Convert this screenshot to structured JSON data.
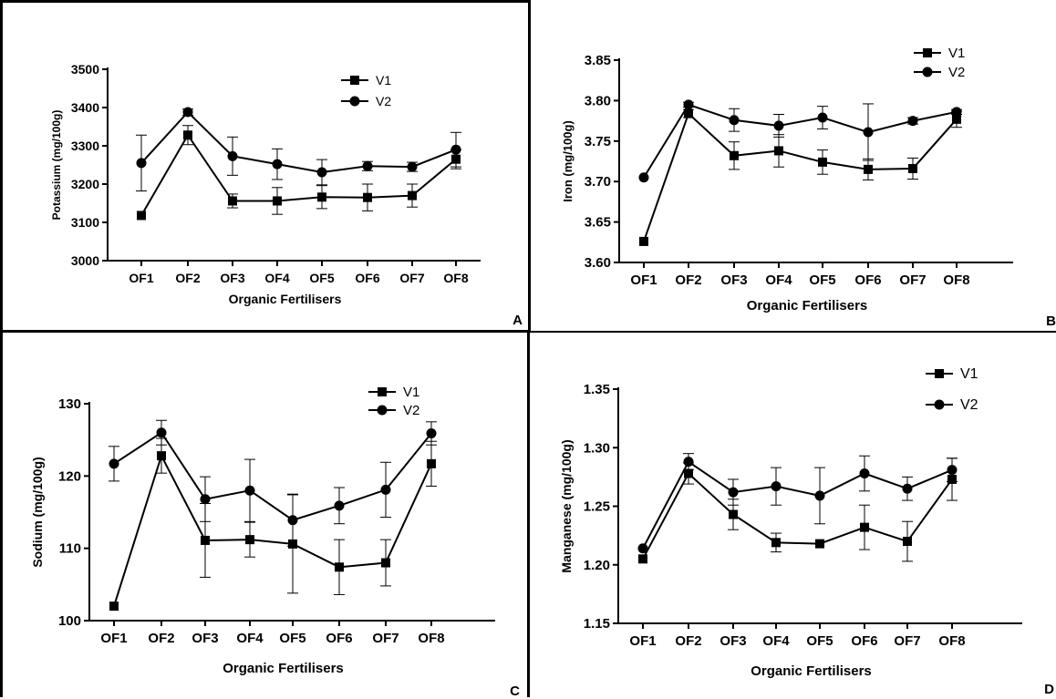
{
  "chart_data": [
    {
      "panel": "A",
      "type": "line",
      "xlabel": "Organic Fertilisers",
      "ylabel": "Potassium (mg/100g)",
      "categories": [
        "OF1",
        "OF2",
        "OF3",
        "OF4",
        "OF5",
        "OF6",
        "OF7",
        "OF8"
      ],
      "ylim": [
        3000,
        3500
      ],
      "yticks": [
        3000,
        3100,
        3200,
        3300,
        3400,
        3500
      ],
      "series": [
        {
          "name": "V1",
          "marker": "square",
          "values": [
            3118,
            3328,
            3156,
            3156,
            3166,
            3165,
            3170,
            3265
          ],
          "errors": [
            0,
            25,
            18,
            35,
            30,
            35,
            30,
            25
          ]
        },
        {
          "name": "V2",
          "marker": "circle",
          "values": [
            3255,
            3388,
            3273,
            3252,
            3231,
            3247,
            3245,
            3290
          ],
          "errors": [
            73,
            8,
            50,
            40,
            33,
            12,
            12,
            45
          ]
        }
      ],
      "legend": "top-right"
    },
    {
      "panel": "B",
      "type": "line",
      "xlabel": "Organic Fertilisers",
      "ylabel": "Iron (mg/100g)",
      "categories": [
        "OF1",
        "OF2",
        "OF3",
        "OF4",
        "OF5",
        "OF6",
        "OF7",
        "OF8"
      ],
      "ylim": [
        3.6,
        3.85
      ],
      "yticks": [
        "3.60",
        "3.65",
        "3.70",
        "3.75",
        "3.80",
        "3.85"
      ],
      "series": [
        {
          "name": "V1",
          "marker": "square",
          "values": [
            3.626,
            3.784,
            3.732,
            3.738,
            3.724,
            3.715,
            3.716,
            3.777
          ],
          "errors": [
            0,
            0.005,
            0.017,
            0.02,
            0.015,
            0.013,
            0.013,
            0.01
          ]
        },
        {
          "name": "V2",
          "marker": "circle",
          "values": [
            3.705,
            3.795,
            3.776,
            3.769,
            3.779,
            3.761,
            3.775,
            3.786
          ],
          "errors": [
            0,
            0.003,
            0.014,
            0.014,
            0.014,
            0.035,
            0.004,
            0.003
          ]
        }
      ],
      "legend": "top-right"
    },
    {
      "panel": "C",
      "type": "line",
      "xlabel": "Organic Fertilisers",
      "ylabel": "Sodium (mg/100g)",
      "categories": [
        "OF1",
        "OF2",
        "OF3",
        "OF4",
        "OF5",
        "OF6",
        "OF7",
        "OF8"
      ],
      "ylim": [
        100,
        130
      ],
      "yticks": [
        100,
        110,
        120,
        130
      ],
      "series": [
        {
          "name": "V1",
          "marker": "square",
          "values": [
            102.0,
            122.8,
            111.1,
            111.2,
            110.6,
            107.4,
            108.0,
            121.7
          ],
          "errors": [
            0,
            2.4,
            5.1,
            2.4,
            6.8,
            3.8,
            3.2,
            3.1
          ]
        },
        {
          "name": "V2",
          "marker": "circle",
          "values": [
            121.7,
            126.0,
            116.8,
            118.0,
            113.9,
            115.9,
            118.1,
            125.9
          ],
          "errors": [
            2.4,
            1.7,
            3.1,
            4.3,
            3.6,
            2.5,
            3.8,
            1.6
          ]
        }
      ],
      "legend": "top-right"
    },
    {
      "panel": "D",
      "type": "line",
      "xlabel": "Organic Fertilisers",
      "ylabel": "Manganese (mg/100g)",
      "categories": [
        "OF1",
        "OF2",
        "OF3",
        "OF4",
        "OF5",
        "OF6",
        "OF7",
        "OF8"
      ],
      "ylim": [
        1.15,
        1.35
      ],
      "yticks": [
        "1.15",
        "1.20",
        "1.25",
        "1.30",
        "1.35"
      ],
      "series": [
        {
          "name": "V1",
          "marker": "square",
          "values": [
            1.205,
            1.278,
            1.243,
            1.219,
            1.218,
            1.232,
            1.22,
            1.273
          ],
          "errors": [
            0,
            0.009,
            0.013,
            0.008,
            0,
            0.019,
            0.017,
            0.018
          ]
        },
        {
          "name": "V2",
          "marker": "circle",
          "values": [
            1.214,
            1.288,
            1.262,
            1.267,
            1.259,
            1.278,
            1.265,
            1.281
          ],
          "errors": [
            0,
            0.007,
            0.011,
            0.016,
            0.024,
            0.015,
            0.01,
            0.01
          ]
        }
      ],
      "legend": "top-right"
    }
  ]
}
